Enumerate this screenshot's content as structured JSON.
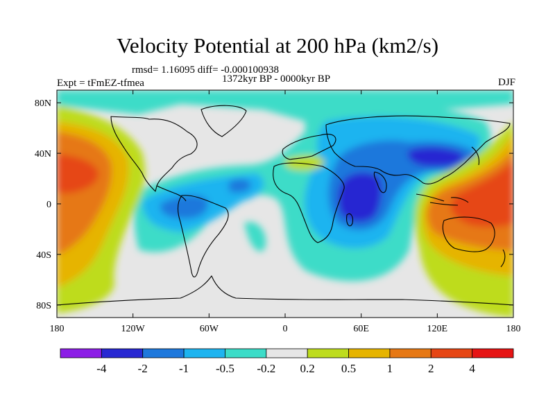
{
  "title": "Velocity Potential at 200 hPa (km2/s)",
  "stats_line": "rmsd= 1.16095 diff= -0.000100938",
  "period_line": "1372kyr BP - 0000kyr BP",
  "left_label": "Expt = tFmEZ-tfmea",
  "right_label": "DJF",
  "map": {
    "projection": "cylindrical equidistant",
    "lon_range": [
      -180,
      180
    ],
    "lat_range": [
      -90,
      90
    ],
    "x_ticks": [
      {
        "lon": -180,
        "label": "180"
      },
      {
        "lon": -120,
        "label": "120W"
      },
      {
        "lon": -60,
        "label": "60W"
      },
      {
        "lon": 0,
        "label": "0"
      },
      {
        "lon": 60,
        "label": "60E"
      },
      {
        "lon": 120,
        "label": "120E"
      },
      {
        "lon": 180,
        "label": "180"
      }
    ],
    "y_ticks": [
      {
        "lat": 80,
        "label": "80N"
      },
      {
        "lat": 40,
        "label": "40N"
      },
      {
        "lat": 0,
        "label": "0"
      },
      {
        "lat": -40,
        "label": "40S"
      },
      {
        "lat": -80,
        "label": "80S"
      }
    ]
  },
  "colorbar": {
    "labels": [
      "-4",
      "-2",
      "-1",
      "-0.5",
      "-0.2",
      "0.2",
      "0.5",
      "1",
      "2",
      "4"
    ],
    "colors": [
      "#8c1ee6",
      "#2828d2",
      "#1e78dc",
      "#1eb4f0",
      "#3cdcc8",
      "#e6e6e6",
      "#bedc1e",
      "#e6b400",
      "#e67814",
      "#e64614",
      "#e61414"
    ]
  },
  "chart_data": {
    "type": "contour-map",
    "variable": "Velocity Potential at 200 hPa",
    "units": "km2/s",
    "levels": [
      -4,
      -2,
      -1,
      -0.5,
      -0.2,
      0.2,
      0.5,
      1,
      2,
      4
    ],
    "features": [
      {
        "name": "positive-center-east-pacific",
        "lon": -170,
        "lat": 30,
        "value": 2
      },
      {
        "name": "positive-center-west-pacific",
        "lon": 150,
        "lat": 0,
        "value": 3
      },
      {
        "name": "negative-center-east-africa",
        "lon": 55,
        "lat": 0,
        "value": -2.5
      },
      {
        "name": "negative-center-central-asia",
        "lon": 110,
        "lat": 40,
        "value": -2.2
      },
      {
        "name": "negative-center-south-america",
        "lon": -70,
        "lat": -3,
        "value": -1.2
      },
      {
        "name": "negative-center-atlantic",
        "lon": -40,
        "lat": 15,
        "value": -1.1
      },
      {
        "name": "positive-center-mediterranean",
        "lon": 15,
        "lat": 37,
        "value": 0.3
      },
      {
        "name": "negative-center-south-atlantic",
        "lon": -20,
        "lat": -28,
        "value": -0.3
      }
    ]
  }
}
